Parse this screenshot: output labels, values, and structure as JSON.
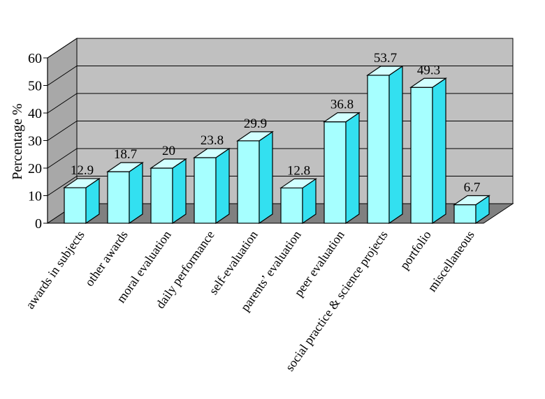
{
  "chart_data": {
    "type": "bar",
    "ylabel": "Percentage %",
    "xlabel": "",
    "ylim": [
      0,
      60
    ],
    "yticks": [
      "0",
      "10",
      "20",
      "30",
      "40",
      "50",
      "60"
    ],
    "grid": true,
    "three_d": true,
    "categories": [
      "awards in subjects",
      "other awards",
      "moral evaluation",
      "daily performance",
      "self-evaluation",
      "parents’ evaluation",
      "peer evaluation",
      "social practice & science projects",
      "portfolio",
      "miscellaneous"
    ],
    "values": [
      12.9,
      18.7,
      20,
      23.8,
      29.9,
      12.8,
      36.8,
      53.7,
      49.3,
      6.7
    ],
    "value_labels": [
      "12.9",
      "18.7",
      "20",
      "23.8",
      "29.9",
      "12.8",
      "36.8",
      "53.7",
      "49.3",
      "6.7"
    ],
    "colors": {
      "bar_front": "#a6ffff",
      "bar_side": "#33e0f0",
      "bar_top": "#d2ffff",
      "wall": "#c0c0c0",
      "floor": "#808080",
      "side_wall": "#a8a8a8"
    }
  }
}
